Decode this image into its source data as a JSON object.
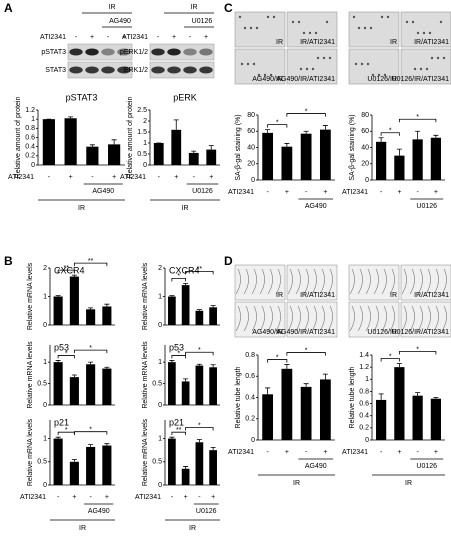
{
  "panel_labels": [
    "A",
    "B",
    "C",
    "D"
  ],
  "blots": [
    {
      "group": "IR",
      "inhibitor": "AG490",
      "row_label": "ATI2341",
      "signs": [
        "-",
        "+",
        "-",
        "+"
      ],
      "bands": [
        "pSTAT3",
        "STAT3"
      ]
    },
    {
      "group": "IR",
      "inhibitor": "U0126",
      "row_label": "ATI2341",
      "signs": [
        "-",
        "+",
        "-",
        "+"
      ],
      "bands": [
        "pERK1/2",
        "ERK1/2"
      ]
    }
  ],
  "images": [
    {
      "labels": [
        "IR",
        "IR/ATI2341",
        "AG490/IR",
        "AG490/IR/ATI2341"
      ]
    },
    {
      "labels": [
        "IR",
        "IR/ATI2341",
        "U0126/IR",
        "U0126/IR/ATI2341"
      ]
    },
    {
      "labels": [
        "IR",
        "IR/ATI2341",
        "AG490/IR",
        "AG490/IR/ATI2341"
      ]
    },
    {
      "labels": [
        "IR",
        "IR/ATI2341",
        "U0126/IR",
        "U0126/IR/ATI2341"
      ]
    }
  ],
  "chart_data": [
    {
      "type": "bar",
      "title": "pSTAT3",
      "ylabel": "Relative amount of protein",
      "color": "#000000",
      "values": [
        1.0,
        1.02,
        0.4,
        0.45
      ],
      "errors": [
        0,
        0.03,
        0.04,
        0.1
      ],
      "ylim": [
        0,
        1.2
      ],
      "yticks": [
        0,
        0.2,
        0.4,
        0.6,
        0.8,
        1,
        1.2
      ],
      "categories": [
        "-",
        "+",
        "-",
        "+"
      ],
      "row_label": "ATI2341",
      "inhibitor": "AG490",
      "group": "IR",
      "annotations": []
    },
    {
      "type": "bar",
      "title": "pERK",
      "ylabel": "Relative amount of protein",
      "color": "#000000",
      "values": [
        1.0,
        1.6,
        0.55,
        0.7
      ],
      "errors": [
        0,
        0.45,
        0.08,
        0.18
      ],
      "ylim": [
        0,
        2.5
      ],
      "yticks": [
        0,
        0.5,
        1,
        1.5,
        2,
        2.5
      ],
      "categories": [
        "-",
        "+",
        "-",
        "+"
      ],
      "row_label": "ATI2341",
      "inhibitor": "U0126",
      "group": "IR",
      "annotations": []
    },
    {
      "type": "bar",
      "ylabel": "SA-β-gal staining (%)",
      "color": "#000000",
      "values": [
        58,
        41,
        57,
        62
      ],
      "errors": [
        4,
        4,
        3,
        5
      ],
      "ylim": [
        0,
        80
      ],
      "yticks": [
        0,
        20,
        40,
        60,
        80
      ],
      "categories": [
        "-",
        "+",
        "-",
        "+"
      ],
      "row_label": "ATI2341",
      "inhibitor": "AG490",
      "annotations": [
        {
          "from": 0,
          "to": 1,
          "label": "*"
        },
        {
          "from": 1,
          "to": 3,
          "label": "*"
        }
      ]
    },
    {
      "type": "bar",
      "ylabel": "SA-β-gal staining (%)",
      "color": "#000000",
      "values": [
        47,
        30,
        50,
        52
      ],
      "errors": [
        5,
        8,
        10,
        3
      ],
      "ylim": [
        0,
        80
      ],
      "yticks": [
        0,
        20,
        40,
        60,
        80
      ],
      "categories": [
        "-",
        "+",
        "-",
        "+"
      ],
      "row_label": "ATI2341",
      "inhibitor": "U0126",
      "annotations": [
        {
          "from": 0,
          "to": 1,
          "label": "*"
        },
        {
          "from": 1,
          "to": 3,
          "label": "*"
        }
      ]
    },
    {
      "type": "bar",
      "title": "CXCR4",
      "ylabel": "Relative mRNA levels",
      "color": "#000000",
      "values": [
        1,
        1.7,
        0.55,
        0.65
      ],
      "errors": [
        0.03,
        0.05,
        0.05,
        0.08
      ],
      "ylim": [
        0,
        2
      ],
      "yticks": [
        0,
        1,
        2
      ],
      "annotations": [
        {
          "from": 0,
          "to": 1,
          "label": "**"
        },
        {
          "from": 1,
          "to": 3,
          "label": "**"
        }
      ]
    },
    {
      "type": "bar",
      "title": "CXCR4",
      "ylabel": "Relative mRNA levels",
      "color": "#000000",
      "values": [
        1,
        1.4,
        0.5,
        0.62
      ],
      "errors": [
        0.03,
        0.06,
        0.04,
        0.06
      ],
      "ylim": [
        0,
        2
      ],
      "yticks": [
        0,
        1,
        2
      ],
      "annotations": [
        {
          "from": 0,
          "to": 1,
          "label": "*"
        },
        {
          "from": 1,
          "to": 3,
          "label": "**"
        }
      ]
    },
    {
      "type": "bar",
      "title": "p53",
      "ylabel": "Relative mRNA levels",
      "color": "#000000",
      "values": [
        1,
        0.65,
        0.95,
        0.85
      ],
      "errors": [
        0.04,
        0.05,
        0.05,
        0.03
      ],
      "ylim": [
        0,
        1.4
      ],
      "yticks": [
        0,
        0.5,
        1
      ],
      "annotations": [
        {
          "from": 0,
          "to": 1,
          "label": "*"
        },
        {
          "from": 1,
          "to": 3,
          "label": "*"
        }
      ]
    },
    {
      "type": "bar",
      "title": "p53",
      "ylabel": "Relative mRNA levels",
      "color": "#000000",
      "values": [
        1,
        0.55,
        0.92,
        0.88
      ],
      "errors": [
        0.04,
        0.06,
        0.03,
        0.06
      ],
      "ylim": [
        0,
        1.4
      ],
      "yticks": [
        0,
        0.5,
        1
      ],
      "annotations": [
        {
          "from": 0,
          "to": 1,
          "label": "*"
        },
        {
          "from": 1,
          "to": 3,
          "label": "*"
        }
      ]
    },
    {
      "type": "bar",
      "title": "p21",
      "ylabel": "Relative mRNA levels",
      "color": "#000000",
      "values": [
        1,
        0.5,
        0.82,
        0.85
      ],
      "errors": [
        0.03,
        0.05,
        0.05,
        0.04
      ],
      "ylim": [
        0,
        1.4
      ],
      "yticks": [
        0,
        0.5,
        1
      ],
      "categories": [
        "-",
        "+",
        "-",
        "+"
      ],
      "row_label": "ATI2341",
      "inhibitor": "AG490",
      "group": "IR",
      "annotations": [
        {
          "from": 0,
          "to": 1,
          "label": "*"
        },
        {
          "from": 1,
          "to": 3,
          "label": "*"
        }
      ]
    },
    {
      "type": "bar",
      "title": "p21",
      "ylabel": "Relative mRNA levels",
      "color": "#000000",
      "values": [
        1,
        0.35,
        0.92,
        0.75
      ],
      "errors": [
        0.03,
        0.05,
        0.06,
        0.06
      ],
      "ylim": [
        0,
        1.4
      ],
      "yticks": [
        0,
        0.5,
        1
      ],
      "categories": [
        "-",
        "+",
        "-",
        "+"
      ],
      "row_label": "ATI2341",
      "inhibitor": "U0126",
      "group": "IR",
      "annotations": [
        {
          "from": 0,
          "to": 1,
          "label": "**"
        },
        {
          "from": 1,
          "to": 3,
          "label": "*"
        }
      ]
    },
    {
      "type": "bar",
      "ylabel": "Relative tube length",
      "color": "#000000",
      "values": [
        0.43,
        0.67,
        0.5,
        0.57
      ],
      "errors": [
        0.06,
        0.04,
        0.03,
        0.05
      ],
      "ylim": [
        0,
        0.8
      ],
      "yticks": [
        0,
        0.2,
        0.4,
        0.6,
        0.8
      ],
      "categories": [
        "-",
        "+",
        "-",
        "+"
      ],
      "row_label": "ATI2341",
      "inhibitor": "AG490",
      "group": "IR",
      "annotations": [
        {
          "from": 0,
          "to": 1,
          "label": "*"
        },
        {
          "from": 1,
          "to": 3,
          "label": "*"
        }
      ]
    },
    {
      "type": "bar",
      "ylabel": "Relative tube length",
      "color": "#000000",
      "values": [
        0.66,
        1.2,
        0.73,
        0.68
      ],
      "errors": [
        0.1,
        0.06,
        0.05,
        0.02
      ],
      "ylim": [
        0,
        1.4
      ],
      "yticks": [
        0,
        0.2,
        0.4,
        0.6,
        0.8,
        1,
        1.2,
        1.4
      ],
      "categories": [
        "-",
        "+",
        "-",
        "+"
      ],
      "row_label": "ATI2341",
      "inhibitor": "U0126",
      "group": "IR",
      "annotations": [
        {
          "from": 0,
          "to": 1,
          "label": "*"
        },
        {
          "from": 1,
          "to": 3,
          "label": "*"
        }
      ]
    }
  ]
}
